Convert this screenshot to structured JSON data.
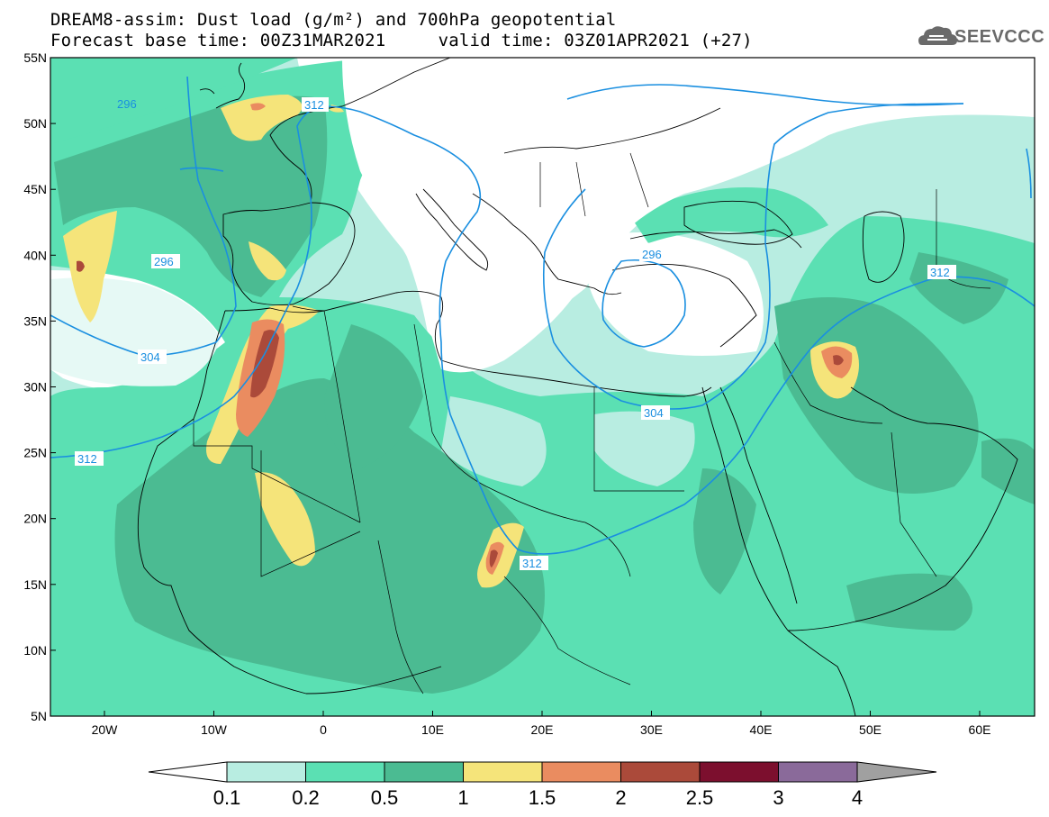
{
  "title": {
    "line1": "DREAM8-assim: Dust load (g/m²) and 700hPa geopotential",
    "line2": "Forecast base time: 00Z31MAR2021     valid time: 03Z01APR2021 (+27)"
  },
  "logo": {
    "text": "SEEVCCC",
    "icon": "cloud-icon"
  },
  "map": {
    "lat_ticks": [
      "55N",
      "50N",
      "45N",
      "40N",
      "35N",
      "30N",
      "25N",
      "20N",
      "15N",
      "10N",
      "5N"
    ],
    "lon_ticks": [
      "20W",
      "10W",
      "0",
      "10E",
      "20E",
      "30E",
      "40E",
      "50E",
      "60E"
    ],
    "contour_labels": [
      {
        "id": "c296a",
        "text": "296"
      },
      {
        "id": "c312a",
        "text": "312"
      },
      {
        "id": "c296b",
        "text": "296"
      },
      {
        "id": "c296c",
        "text": "296"
      },
      {
        "id": "c304a",
        "text": "304"
      },
      {
        "id": "c312b",
        "text": "312"
      },
      {
        "id": "c304b",
        "text": "304"
      },
      {
        "id": "c312c",
        "text": "312"
      },
      {
        "id": "c312d",
        "text": "312"
      }
    ]
  },
  "colorbar": {
    "labels": [
      "0.1",
      "0.2",
      "0.5",
      "1",
      "1.5",
      "2",
      "2.5",
      "3",
      "4"
    ],
    "colors": [
      "#ffffff",
      "#b8ede1",
      "#5be0b3",
      "#4bbb92",
      "#f5e47a",
      "#ea8c60",
      "#ab4a3a",
      "#7c0f2e",
      "#8a6a9a",
      "#a0a0a0"
    ]
  }
}
